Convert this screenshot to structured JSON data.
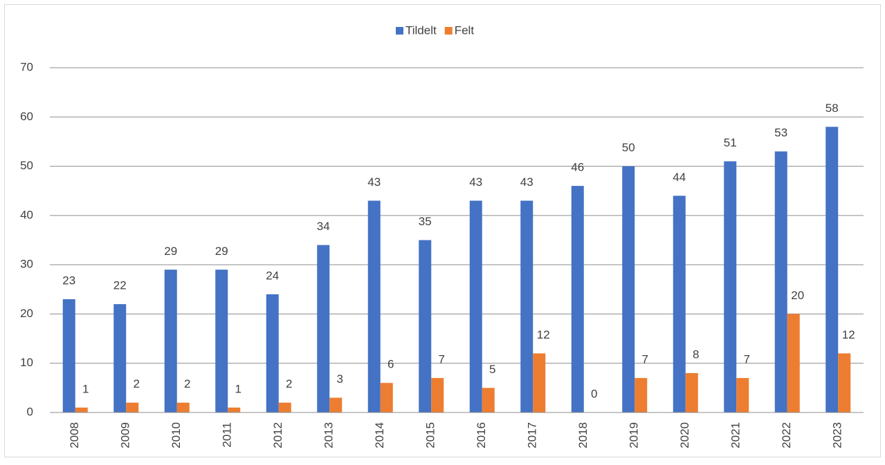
{
  "chart_data": {
    "type": "bar",
    "categories": [
      "2008",
      "2009",
      "2010",
      "2011",
      "2012",
      "2013",
      "2014",
      "2015",
      "2016",
      "2017",
      "2018",
      "2019",
      "2020",
      "2021",
      "2022",
      "2023"
    ],
    "series": [
      {
        "name": "Tildelt",
        "color": "#4472c4",
        "values": [
          23,
          22,
          29,
          29,
          24,
          34,
          43,
          35,
          43,
          43,
          46,
          50,
          44,
          51,
          53,
          58
        ]
      },
      {
        "name": "Felt",
        "color": "#ed7d31",
        "values": [
          1,
          2,
          2,
          1,
          2,
          3,
          6,
          7,
          5,
          12,
          0,
          7,
          8,
          7,
          20,
          12
        ]
      }
    ],
    "ylim": [
      0,
      70
    ],
    "yticks": [
      0,
      10,
      20,
      30,
      40,
      50,
      60,
      70
    ],
    "grid": true,
    "legend": "top"
  }
}
